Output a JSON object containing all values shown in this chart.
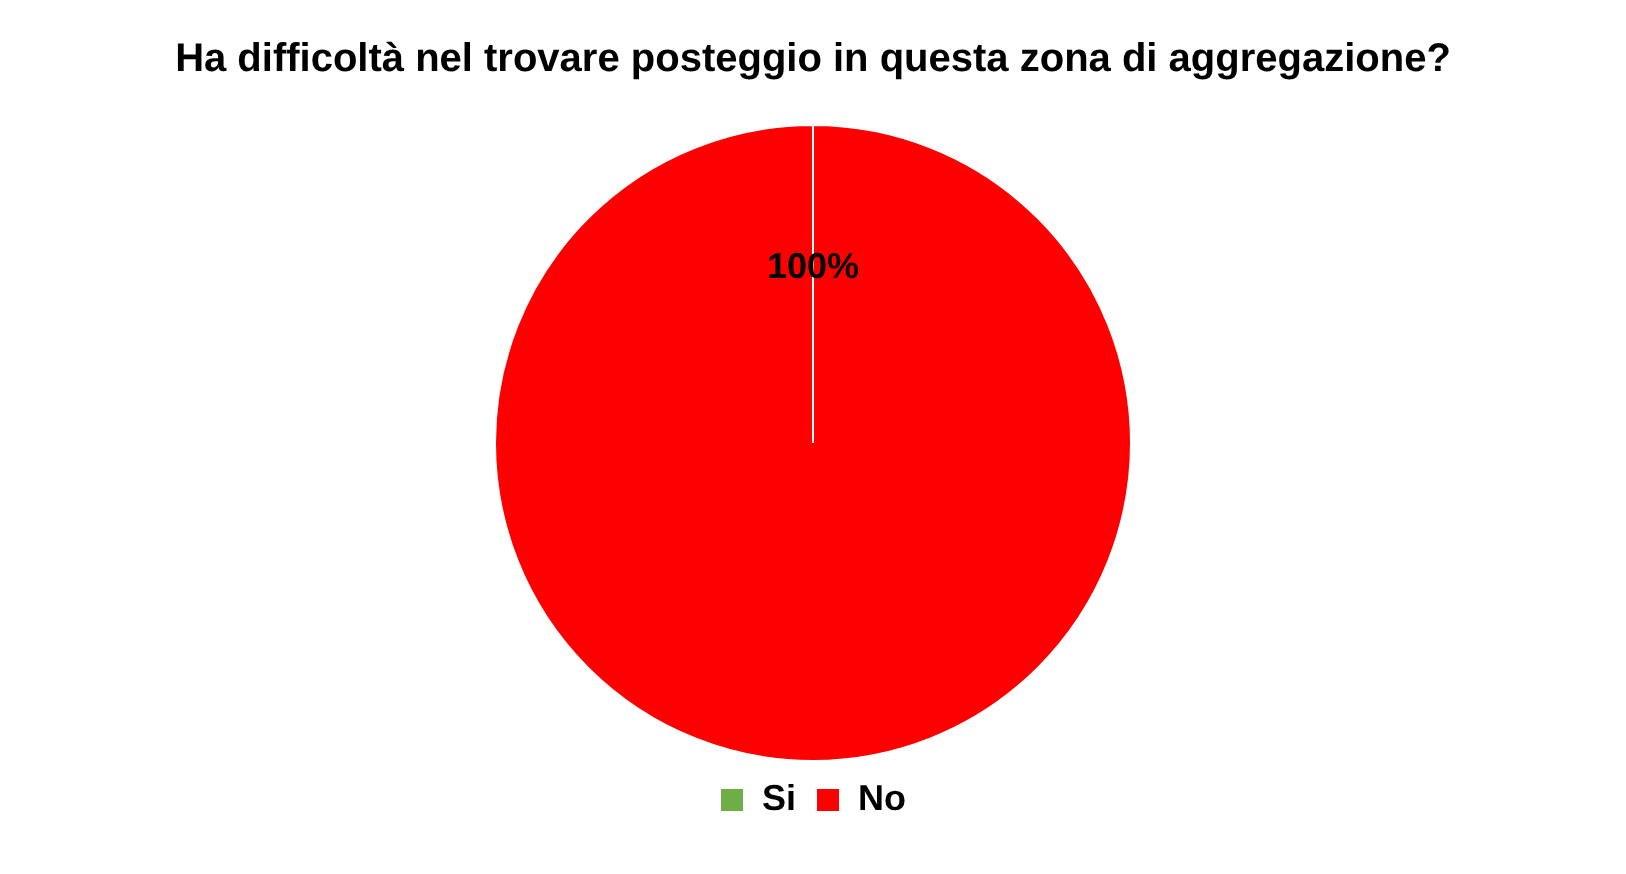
{
  "chart_data": {
    "type": "pie",
    "title": "Ha difficoltà nel trovare posteggio in questa zona di aggregazione?",
    "categories": [
      "Si",
      "No"
    ],
    "values": [
      0,
      100
    ],
    "colors": [
      "#70ad47",
      "#ff0000"
    ],
    "value_labels": [
      null,
      "100%"
    ],
    "legend": "bottom"
  }
}
